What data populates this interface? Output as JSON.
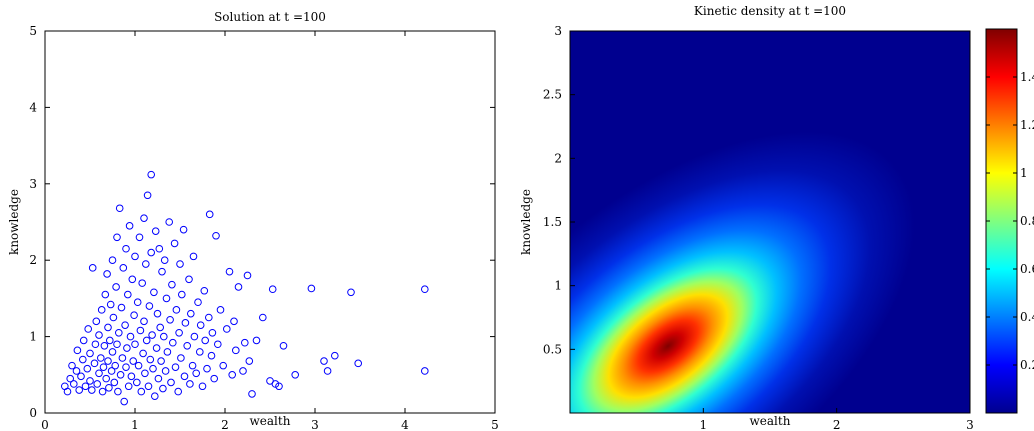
{
  "chart_data": [
    {
      "type": "scatter",
      "title": "Solution at t =100",
      "xlabel": "wealth",
      "ylabel": "knowledge",
      "xlim": [
        0,
        5
      ],
      "ylim": [
        0,
        5
      ],
      "xticks": [
        "0",
        "1",
        "2",
        "3",
        "4",
        "5"
      ],
      "yticks": [
        "0",
        "1",
        "2",
        "3",
        "4",
        "5"
      ],
      "marker": "open-circle",
      "marker_color": "#0000ff",
      "grid": false,
      "series": [
        {
          "points": [
            [
              0.22,
              0.35
            ],
            [
              0.25,
              0.28
            ],
            [
              0.28,
              0.45
            ],
            [
              0.3,
              0.62
            ],
            [
              0.32,
              0.38
            ],
            [
              0.35,
              0.55
            ],
            [
              0.36,
              0.82
            ],
            [
              0.38,
              0.3
            ],
            [
              0.4,
              0.48
            ],
            [
              0.42,
              0.7
            ],
            [
              0.43,
              0.95
            ],
            [
              0.45,
              0.35
            ],
            [
              0.47,
              0.58
            ],
            [
              0.48,
              1.1
            ],
            [
              0.5,
              0.42
            ],
            [
              0.5,
              0.78
            ],
            [
              0.52,
              0.3
            ],
            [
              0.53,
              1.9
            ],
            [
              0.55,
              0.65
            ],
            [
              0.56,
              0.9
            ],
            [
              0.57,
              1.2
            ],
            [
              0.58,
              0.38
            ],
            [
              0.6,
              0.52
            ],
            [
              0.6,
              1.02
            ],
            [
              0.62,
              0.72
            ],
            [
              0.63,
              1.35
            ],
            [
              0.64,
              0.28
            ],
            [
              0.65,
              0.6
            ],
            [
              0.66,
              0.88
            ],
            [
              0.67,
              1.55
            ],
            [
              0.68,
              0.45
            ],
            [
              0.69,
              1.82
            ],
            [
              0.7,
              0.68
            ],
            [
              0.7,
              1.12
            ],
            [
              0.71,
              0.33
            ],
            [
              0.72,
              0.95
            ],
            [
              0.73,
              1.42
            ],
            [
              0.74,
              0.55
            ],
            [
              0.75,
              2.0
            ],
            [
              0.75,
              0.8
            ],
            [
              0.76,
              1.25
            ],
            [
              0.77,
              0.4
            ],
            [
              0.78,
              0.62
            ],
            [
              0.79,
              1.65
            ],
            [
              0.8,
              0.9
            ],
            [
              0.8,
              2.3
            ],
            [
              0.81,
              0.28
            ],
            [
              0.82,
              1.05
            ],
            [
              0.83,
              2.68
            ],
            [
              0.84,
              0.5
            ],
            [
              0.85,
              1.38
            ],
            [
              0.86,
              0.72
            ],
            [
              0.87,
              1.9
            ],
            [
              0.88,
              0.15
            ],
            [
              0.89,
              1.15
            ],
            [
              0.9,
              0.6
            ],
            [
              0.9,
              2.15
            ],
            [
              0.91,
              0.85
            ],
            [
              0.92,
              1.55
            ],
            [
              0.93,
              0.35
            ],
            [
              0.94,
              2.45
            ],
            [
              0.95,
              1.0
            ],
            [
              0.96,
              0.48
            ],
            [
              0.97,
              1.75
            ],
            [
              0.98,
              0.68
            ],
            [
              0.99,
              1.28
            ],
            [
              1.0,
              0.9
            ],
            [
              1.0,
              2.05
            ],
            [
              1.02,
              0.4
            ],
            [
              1.03,
              1.45
            ],
            [
              1.04,
              0.62
            ],
            [
              1.05,
              2.3
            ],
            [
              1.06,
              1.08
            ],
            [
              1.07,
              0.28
            ],
            [
              1.08,
              1.7
            ],
            [
              1.09,
              0.78
            ],
            [
              1.1,
              2.55
            ],
            [
              1.1,
              1.2
            ],
            [
              1.11,
              0.52
            ],
            [
              1.12,
              1.95
            ],
            [
              1.13,
              0.95
            ],
            [
              1.14,
              2.85
            ],
            [
              1.15,
              0.35
            ],
            [
              1.16,
              1.4
            ],
            [
              1.17,
              0.7
            ],
            [
              1.18,
              3.12
            ],
            [
              1.18,
              2.1
            ],
            [
              1.19,
              1.02
            ],
            [
              1.2,
              0.58
            ],
            [
              1.21,
              1.58
            ],
            [
              1.22,
              0.22
            ],
            [
              1.23,
              2.38
            ],
            [
              1.24,
              0.85
            ],
            [
              1.25,
              1.3
            ],
            [
              1.26,
              0.45
            ],
            [
              1.27,
              2.15
            ],
            [
              1.28,
              1.12
            ],
            [
              1.29,
              0.68
            ],
            [
              1.3,
              1.85
            ],
            [
              1.31,
              0.32
            ],
            [
              1.32,
              1.0
            ],
            [
              1.33,
              2.0
            ],
            [
              1.34,
              0.55
            ],
            [
              1.35,
              1.5
            ],
            [
              1.36,
              0.8
            ],
            [
              1.38,
              2.5
            ],
            [
              1.39,
              1.22
            ],
            [
              1.4,
              0.4
            ],
            [
              1.41,
              1.68
            ],
            [
              1.42,
              0.92
            ],
            [
              1.44,
              2.22
            ],
            [
              1.45,
              0.6
            ],
            [
              1.46,
              1.35
            ],
            [
              1.48,
              0.28
            ],
            [
              1.49,
              1.05
            ],
            [
              1.5,
              1.95
            ],
            [
              1.51,
              0.72
            ],
            [
              1.52,
              1.55
            ],
            [
              1.54,
              2.4
            ],
            [
              1.55,
              0.48
            ],
            [
              1.56,
              1.18
            ],
            [
              1.58,
              0.88
            ],
            [
              1.6,
              1.75
            ],
            [
              1.61,
              0.38
            ],
            [
              1.62,
              1.3
            ],
            [
              1.64,
              0.62
            ],
            [
              1.65,
              2.05
            ],
            [
              1.66,
              1.0
            ],
            [
              1.68,
              0.52
            ],
            [
              1.7,
              1.45
            ],
            [
              1.72,
              0.8
            ],
            [
              1.73,
              1.15
            ],
            [
              1.75,
              0.35
            ],
            [
              1.77,
              1.6
            ],
            [
              1.78,
              0.95
            ],
            [
              1.8,
              0.58
            ],
            [
              1.82,
              1.25
            ],
            [
              1.83,
              2.6
            ],
            [
              1.85,
              0.75
            ],
            [
              1.86,
              1.05
            ],
            [
              1.88,
              0.45
            ],
            [
              1.9,
              2.32
            ],
            [
              1.92,
              0.9
            ],
            [
              1.95,
              1.35
            ],
            [
              1.98,
              0.62
            ],
            [
              2.02,
              1.1
            ],
            [
              2.05,
              1.85
            ],
            [
              2.08,
              0.5
            ],
            [
              2.1,
              1.2
            ],
            [
              2.12,
              0.82
            ],
            [
              2.15,
              1.65
            ],
            [
              2.2,
              0.55
            ],
            [
              2.22,
              0.92
            ],
            [
              2.25,
              1.8
            ],
            [
              2.27,
              0.68
            ],
            [
              2.3,
              0.25
            ],
            [
              2.35,
              0.95
            ],
            [
              2.42,
              1.25
            ],
            [
              2.5,
              0.42
            ],
            [
              2.53,
              1.62
            ],
            [
              2.56,
              0.38
            ],
            [
              2.6,
              0.35
            ],
            [
              2.65,
              0.88
            ],
            [
              2.78,
              0.5
            ],
            [
              2.96,
              1.63
            ],
            [
              3.1,
              0.68
            ],
            [
              3.14,
              0.55
            ],
            [
              3.22,
              0.75
            ],
            [
              3.4,
              1.58
            ],
            [
              3.48,
              0.65
            ],
            [
              4.22,
              1.62
            ],
            [
              4.22,
              0.55
            ]
          ]
        }
      ]
    },
    {
      "type": "heatmap",
      "title": "Kinetic density at t =100",
      "xlabel": "wealth",
      "ylabel": "knowledge",
      "xlim": [
        0,
        3
      ],
      "ylim": [
        0,
        3
      ],
      "xticks": [
        "1",
        "2",
        "3"
      ],
      "yticks": [
        "0.5",
        "1",
        "1.5",
        "2",
        "2.5",
        "3"
      ],
      "colormap": "jet",
      "colorbar": {
        "min": 0,
        "max": 1.6,
        "ticks": [
          "0.2",
          "0.4",
          "0.6",
          "0.8",
          "1",
          "1.2",
          "1.4"
        ]
      },
      "peak": {
        "wealth": 0.7,
        "knowledge": 0.6,
        "value": 1.6
      }
    }
  ]
}
